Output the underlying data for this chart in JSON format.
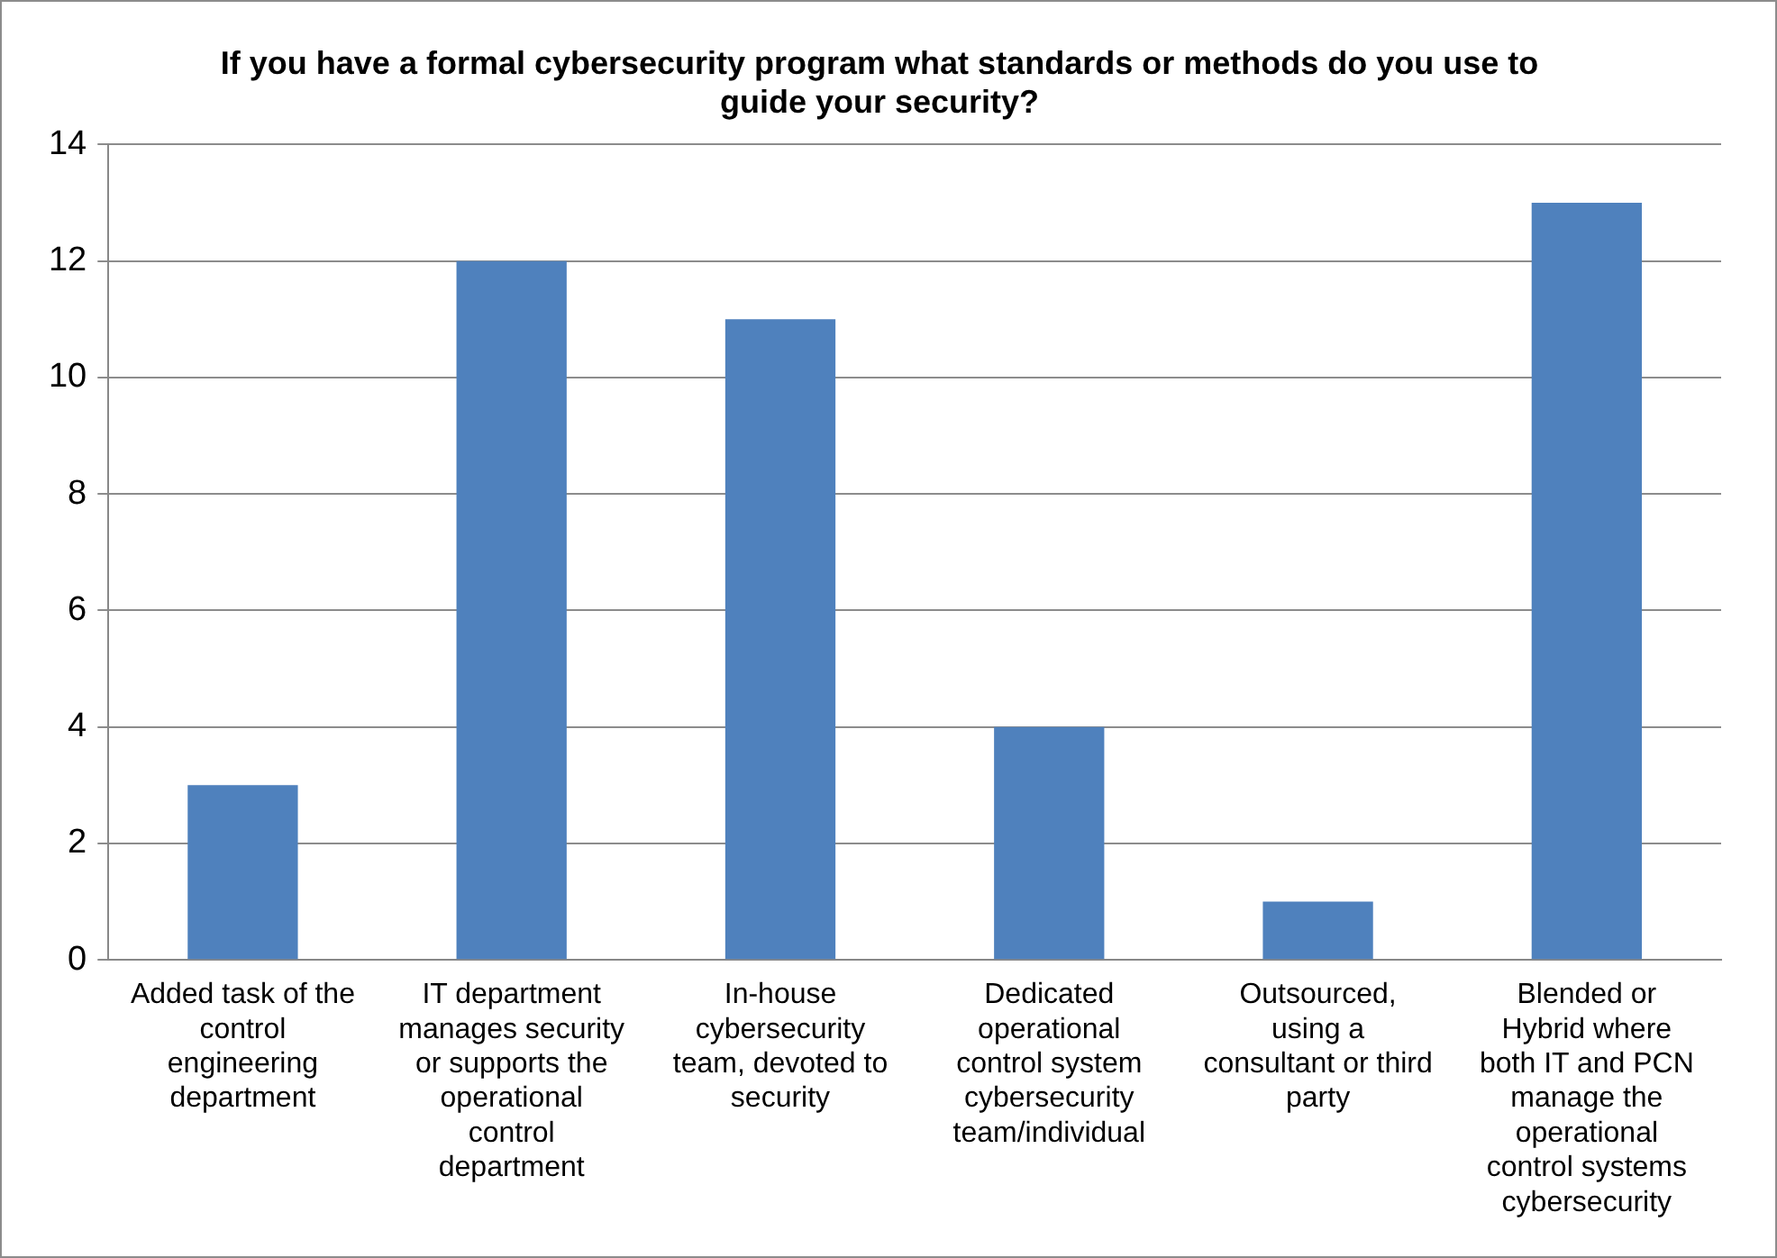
{
  "chart_data": {
    "type": "bar",
    "title": "If you have a formal cybersecurity program what standards or methods do you use to guide your security?",
    "categories": [
      "Added task of the control engineering department",
      "IT department manages security or supports the operational control department",
      "In-house cybersecurity team, devoted to security",
      "Dedicated operational control system cybersecurity team/individual",
      "Outsourced, using a consultant or third party",
      "Blended or Hybrid where both IT and PCN manage the operational control systems cybersecurity"
    ],
    "values": [
      3,
      12,
      11,
      4,
      1,
      13
    ],
    "color": "#4f81bd",
    "ylim": [
      0,
      14
    ],
    "yticks": [
      0,
      2,
      4,
      6,
      8,
      10,
      12,
      14
    ],
    "grid": "y",
    "legend": false
  }
}
